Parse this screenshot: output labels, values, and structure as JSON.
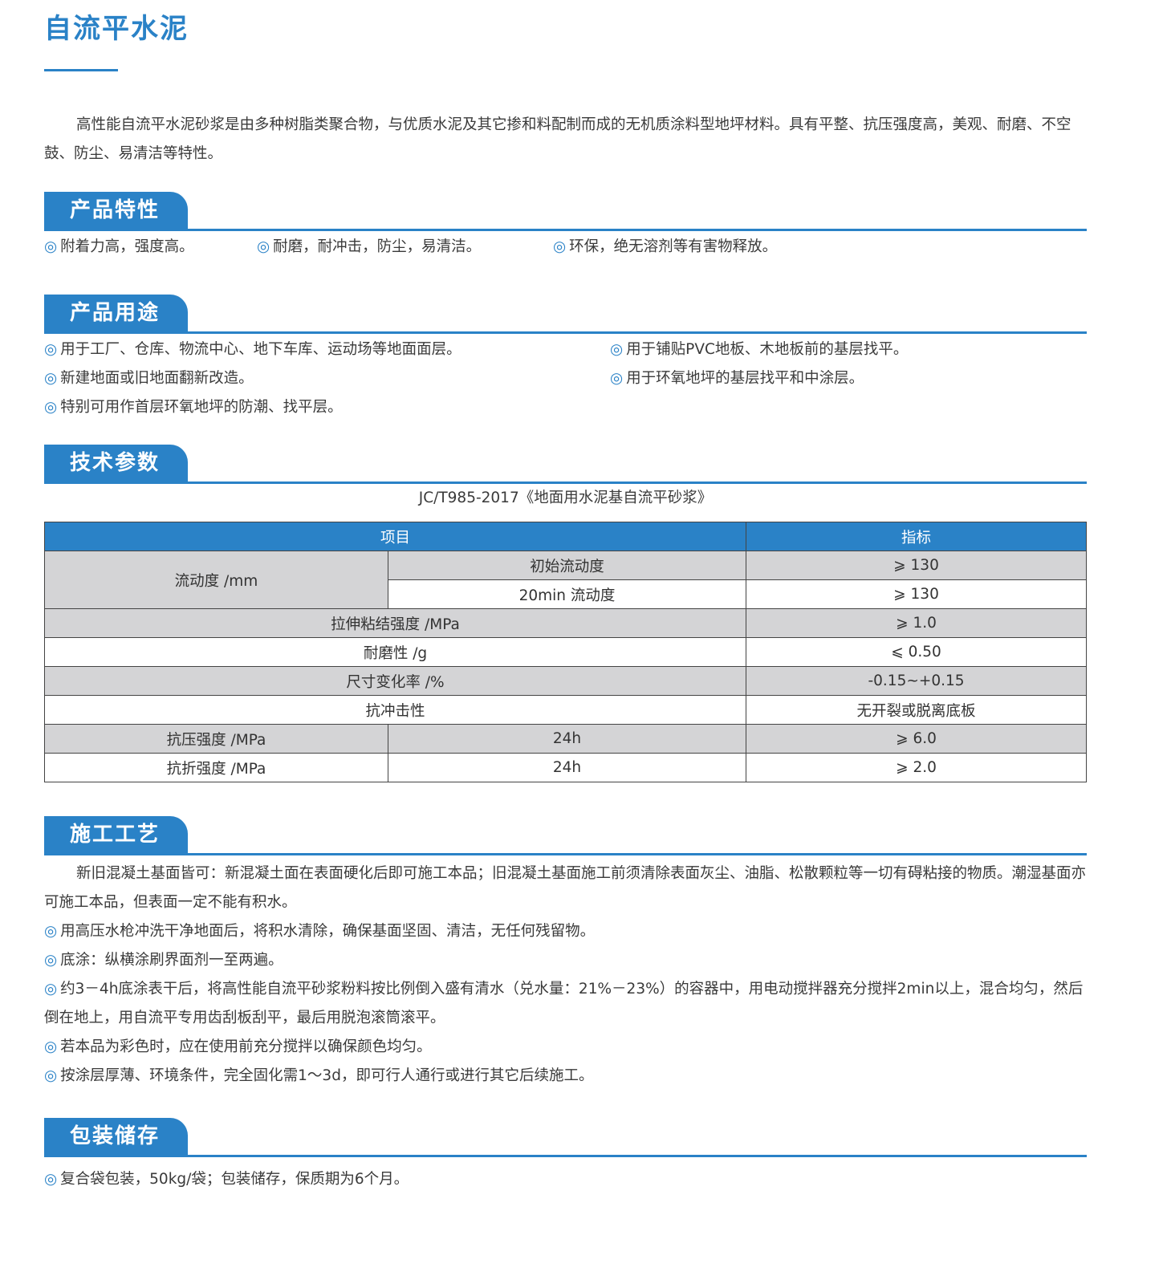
{
  "title": "自流平水泥",
  "intro": "高性能自流平水泥砂浆是由多种树脂类聚合物，与优质水泥及其它掺和料配制而成的无机质涂料型地坪材料。具有平整、抗压强度高，美观、耐磨、不空鼓、防尘、易清洁等特性。",
  "bullet_icon": "◎",
  "accent": "#2a82c7",
  "features": {
    "heading": "产品特性",
    "items": [
      "附着力高，强度高。",
      "耐磨，耐冲击，防尘，易清洁。",
      "环保，绝无溶剂等有害物释放。"
    ]
  },
  "uses": {
    "heading": "产品用途",
    "items": [
      "用于工厂、仓库、物流中心、地下车库、运动场等地面面层。",
      "用于铺贴PVC地板、木地板前的基层找平。",
      "新建地面或旧地面翻新改造。",
      "用于环氧地坪的基层找平和中涂层。",
      "特别可用作首层环氧地坪的防潮、找平层。"
    ]
  },
  "tech": {
    "heading": "技术参数",
    "standard": "JC/T985-2017《地面用水泥基自流平砂浆》",
    "headers": [
      "项目",
      "指标"
    ],
    "rows": {
      "flow": "流动度 /mm",
      "flow_init": "初始流动度",
      "flow_init_v": "⩾ 130",
      "flow_20": "20min 流动度",
      "flow_20_v": "⩾ 130",
      "tensile": "拉伸粘结强度 /MPa",
      "tensile_v": "⩾ 1.0",
      "wear": "耐磨性 /g",
      "wear_v": "⩽ 0.50",
      "size": "尺寸变化率 /%",
      "size_v": "-0.15~+0.15",
      "impact": "抗冲击性",
      "impact_v": "无开裂或脱离底板",
      "comp": "抗压强度 /MPa",
      "comp_t": "24h",
      "comp_v": "⩾ 6.0",
      "flex": "抗折强度 /MPa",
      "flex_t": "24h",
      "flex_v": "⩾ 2.0"
    }
  },
  "construction": {
    "heading": "施工工艺",
    "intro": "新旧混凝土基面皆可：新混凝土面在表面硬化后即可施工本品；旧混凝土基面施工前须清除表面灰尘、油脂、松散颗粒等一切有碍粘接的物质。潮湿基面亦可施工本品，但表面一定不能有积水。",
    "items": [
      "用高压水枪冲洗干净地面后，将积水清除，确保基面坚固、清洁，无任何残留物。",
      "底涂：纵横涂刷界面剂一至两遍。",
      "约3－4h底涂表干后，将高性能自流平砂浆粉料按比例倒入盛有清水（兑水量：21%－23%）的容器中，用电动搅拌器充分搅拌2min以上，混合均匀，然后倒在地上，用自流平专用齿刮板刮平，最后用脱泡滚筒滚平。",
      "若本品为彩色时，应在使用前充分搅拌以确保颜色均匀。",
      "按涂层厚薄、环境条件，完全固化需1～3d，即可行人通行或进行其它后续施工。"
    ]
  },
  "packaging": {
    "heading": "包装储存",
    "items": [
      "复合袋包装，50kg/袋；包装储存，保质期为6个月。"
    ]
  }
}
